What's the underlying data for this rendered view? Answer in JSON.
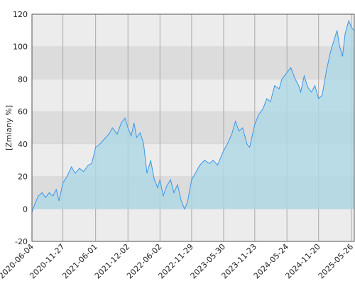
{
  "chart_data": {
    "type": "area",
    "y_label": "[Zmiany %]",
    "color": "#3a96e8",
    "fill_color": "#add8e6",
    "grid": true,
    "x": [
      "2020-06-04",
      "2020-06-20",
      "2020-07-10",
      "2020-08-01",
      "2020-08-20",
      "2020-09-10",
      "2020-10-01",
      "2020-10-20",
      "2020-11-05",
      "2020-11-27",
      "2020-12-20",
      "2021-01-15",
      "2021-02-05",
      "2021-03-01",
      "2021-03-25",
      "2021-04-20",
      "2021-05-10",
      "2021-06-01",
      "2021-06-25",
      "2021-07-20",
      "2021-08-15",
      "2021-09-05",
      "2021-10-01",
      "2021-10-25",
      "2021-11-15",
      "2021-12-02",
      "2021-12-20",
      "2022-01-05",
      "2022-01-20",
      "2022-02-10",
      "2022-03-01",
      "2022-03-20",
      "2022-04-10",
      "2022-05-01",
      "2022-05-20",
      "2022-06-02",
      "2022-06-20",
      "2022-07-10",
      "2022-08-01",
      "2022-08-20",
      "2022-09-10",
      "2022-10-01",
      "2022-10-20",
      "2022-11-05",
      "2022-11-29",
      "2022-12-20",
      "2023-01-15",
      "2023-02-10",
      "2023-03-10",
      "2023-04-01",
      "2023-04-25",
      "2023-05-30",
      "2023-06-20",
      "2023-07-15",
      "2023-08-05",
      "2023-08-25",
      "2023-09-15",
      "2023-10-10",
      "2023-10-25",
      "2023-11-23",
      "2023-12-15",
      "2024-01-10",
      "2024-01-30",
      "2024-02-20",
      "2024-03-15",
      "2024-04-10",
      "2024-04-25",
      "2024-05-24",
      "2024-06-15",
      "2024-07-10",
      "2024-07-30",
      "2024-08-10",
      "2024-08-30",
      "2024-09-20",
      "2024-10-10",
      "2024-10-30",
      "2024-11-20",
      "2024-12-10",
      "2025-01-05",
      "2025-01-25",
      "2025-02-15",
      "2025-03-05",
      "2025-03-20",
      "2025-04-05",
      "2025-04-20",
      "2025-05-10",
      "2025-05-26",
      "2025-06-10"
    ],
    "values": [
      -2,
      3,
      8,
      10,
      7,
      10,
      8,
      12,
      5,
      16,
      20,
      26,
      22,
      25,
      23,
      27,
      28,
      38,
      40,
      43,
      46,
      50,
      46,
      53,
      56,
      50,
      45,
      53,
      44,
      47,
      40,
      22,
      30,
      18,
      13,
      18,
      8,
      14,
      18,
      10,
      15,
      5,
      0,
      4,
      18,
      22,
      27,
      30,
      28,
      30,
      27,
      36,
      40,
      46,
      54,
      48,
      50,
      40,
      38,
      52,
      58,
      62,
      68,
      66,
      76,
      74,
      80,
      84,
      87,
      80,
      76,
      72,
      82,
      75,
      72,
      76,
      68,
      70,
      86,
      96,
      104,
      110,
      100,
      94,
      108,
      116,
      112,
      110
    ],
    "xlim": [
      "2020-06-04",
      "2025-06-11"
    ],
    "xticks": [
      "2020-06-04",
      "2020-11-27",
      "2021-06-01",
      "2021-12-02",
      "2022-06-02",
      "2022-11-29",
      "2023-05-30",
      "2023-11-23",
      "2024-05-24",
      "2024-11-20",
      "2025-05-26"
    ],
    "ylim": [
      -20,
      120
    ],
    "yticks": [
      -20,
      0,
      20,
      40,
      60,
      80,
      100,
      120
    ]
  }
}
